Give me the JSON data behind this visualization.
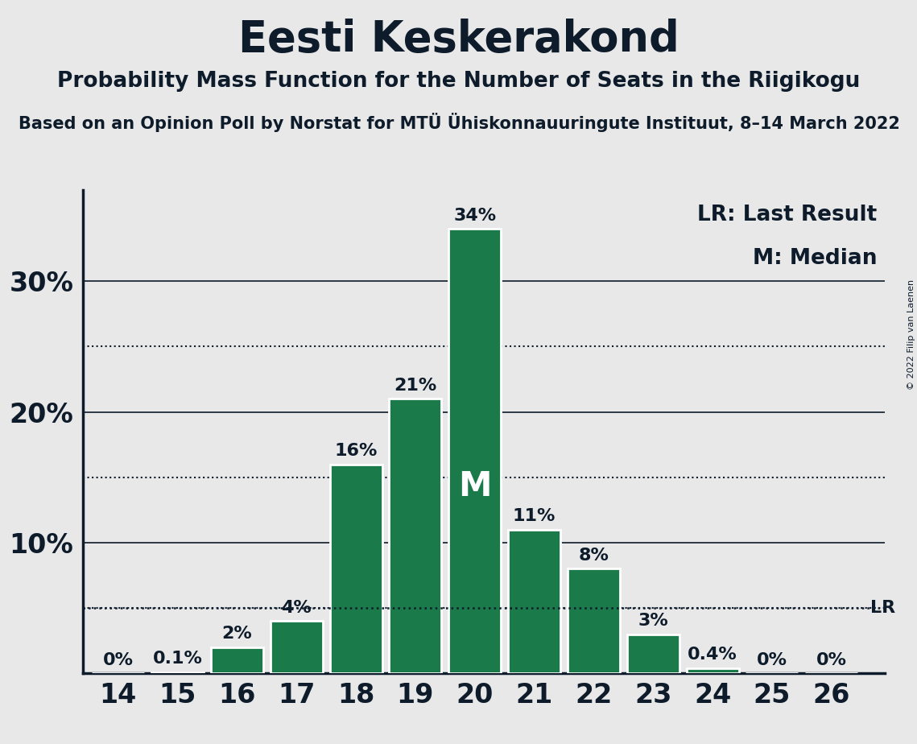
{
  "title": "Eesti Keskerakond",
  "subtitle": "Probability Mass Function for the Number of Seats in the Riigikogu",
  "subtitle2": "Based on an Opinion Poll by Norstat for MTÜ Ühiskonnauuringute Instituut, 8–14 March 2022",
  "copyright": "© 2022 Filip van Laenen",
  "categories": [
    14,
    15,
    16,
    17,
    18,
    19,
    20,
    21,
    22,
    23,
    24,
    25,
    26
  ],
  "values": [
    0.0,
    0.1,
    2.0,
    4.0,
    16.0,
    21.0,
    34.0,
    11.0,
    8.0,
    3.0,
    0.4,
    0.0,
    0.0
  ],
  "labels": [
    "0%",
    "0.1%",
    "2%",
    "4%",
    "16%",
    "21%",
    "34%",
    "11%",
    "8%",
    "3%",
    "0.4%",
    "0%",
    "0%"
  ],
  "bar_color": "#1a7a4a",
  "median_bar": 20,
  "median_label": "M",
  "lr_value": 5.0,
  "lr_label": "LR",
  "legend_lr": "LR: Last Result",
  "legend_m": "M: Median",
  "ylim": [
    0,
    37
  ],
  "solid_lines": [
    10,
    20,
    30
  ],
  "dotted_lines": [
    5,
    15,
    25
  ],
  "background_color": "#e8e8e8",
  "bar_edge_color": "white",
  "axis_color": "#0d1b2a",
  "title_fontsize": 38,
  "subtitle_fontsize": 19,
  "subtitle2_fontsize": 15,
  "ylabel_fontsize": 24,
  "xlabel_fontsize": 24,
  "label_fontsize": 16,
  "legend_fontsize": 19,
  "median_fontsize": 30,
  "copyright_fontsize": 8
}
